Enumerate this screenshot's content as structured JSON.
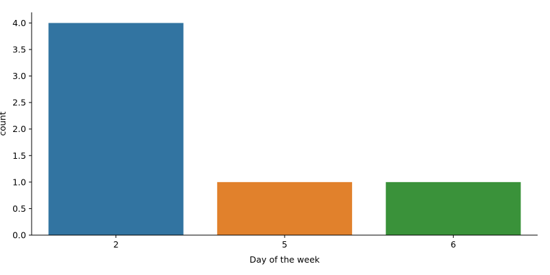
{
  "chart_data": {
    "type": "bar",
    "categories": [
      "2",
      "5",
      "6"
    ],
    "values": [
      4,
      1,
      1
    ],
    "colors": [
      "#3274a1",
      "#e1812c",
      "#3a923a"
    ],
    "title": "",
    "xlabel": "Day of the week",
    "ylabel": "count",
    "ylim": [
      0,
      4.2
    ],
    "yticks": [
      "0.0",
      "0.5",
      "1.0",
      "1.5",
      "2.0",
      "2.5",
      "3.0",
      "3.5",
      "4.0"
    ],
    "grid": false,
    "legend": "none",
    "spines": "left-bottom"
  }
}
